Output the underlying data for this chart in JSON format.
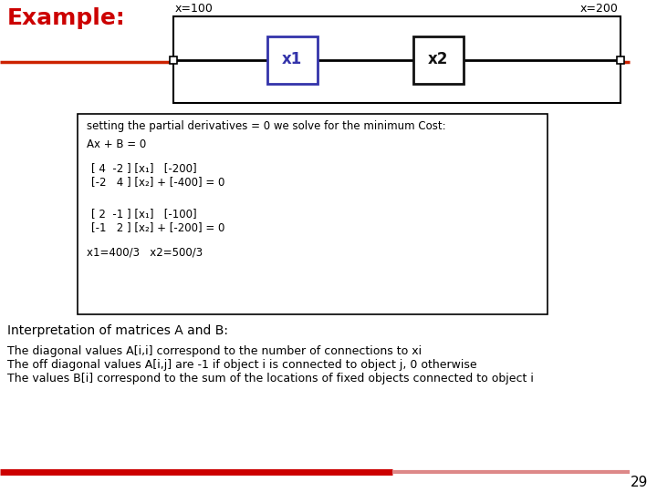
{
  "title": "Example:",
  "title_color": "#cc0000",
  "title_fontsize": 18,
  "x100_label": "x=100",
  "x200_label": "x=200",
  "x1_label": "x1",
  "x2_label": "x2",
  "line_color": "#cc2200",
  "x1_box_color": "#3333aa",
  "x2_box_color": "#111111",
  "interp_text": "Interpretation of matrices A and B:",
  "body_lines": [
    "The diagonal values A[i,i] correspond to the number of connections to xi",
    "The off diagonal values A[i,j] are -1 if object i is connected to object j, 0 otherwise",
    "The values B[i] correspond to the sum of the locations of fixed objects connected to object i"
  ],
  "page_num": "29",
  "bottom_line_color": "#cc0000",
  "bg_color": "#ffffff",
  "font_family": "DejaVu Sans"
}
